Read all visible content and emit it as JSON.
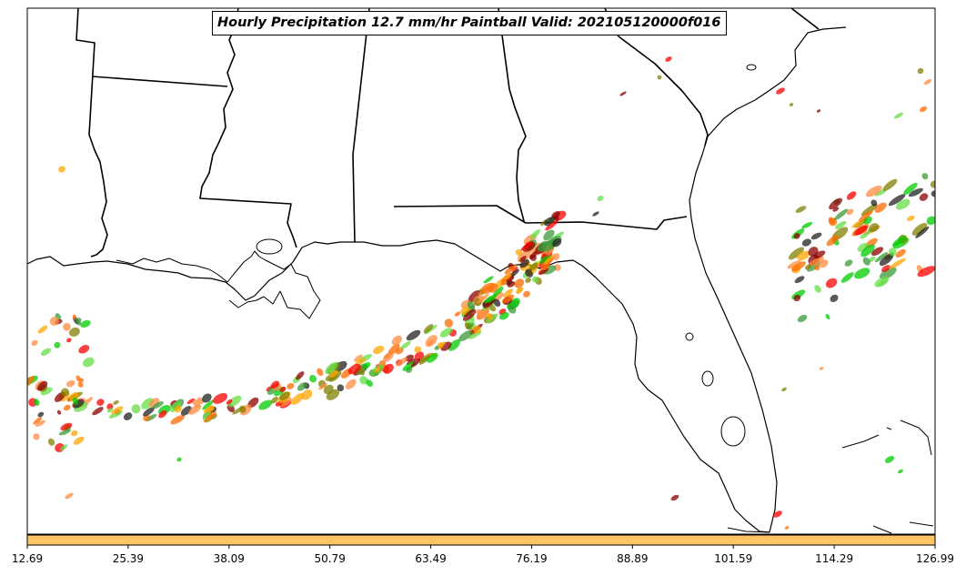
{
  "title": "Hourly Precipitation 12.7 mm/hr Paintball Valid: 202105120000f016",
  "colorbar": {
    "color": "#ffc466",
    "tick_labels": [
      "12.69",
      "25.39",
      "38.09",
      "50.79",
      "63.49",
      "76.19",
      "88.89",
      "101.59",
      "114.29",
      "126.99"
    ]
  },
  "map": {
    "region": "Southeastern United States and Gulf of Mexico",
    "land_color": "#ffffff",
    "boundary_color": "#000000"
  },
  "member_colors": [
    "#ff0000",
    "#ff6a00",
    "#ffa500",
    "#00cc00",
    "#3a9a3a",
    "#8b0000",
    "#808000",
    "#222222",
    "#ff8c42",
    "#66dd44"
  ]
}
